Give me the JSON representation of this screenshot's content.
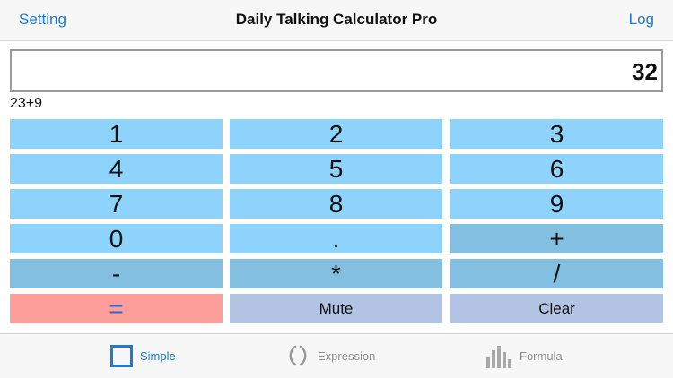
{
  "navbar": {
    "left_button": "Setting",
    "title": "Daily Talking Calculator Pro",
    "right_button": "Log"
  },
  "display": {
    "value": "32",
    "expression": "23+9"
  },
  "keypad": {
    "k1": "1",
    "k2": "2",
    "k3": "3",
    "k4": "4",
    "k5": "5",
    "k6": "6",
    "k7": "7",
    "k8": "8",
    "k9": "9",
    "k0": "0",
    "dot": ".",
    "plus": "+",
    "minus": "-",
    "multiply": "*",
    "divide": "/",
    "equals": "=",
    "mute": "Mute",
    "clear": "Clear"
  },
  "tabs": {
    "simple": {
      "label": "Simple",
      "icon": "square-icon",
      "active": true
    },
    "expression": {
      "label": "Expression",
      "icon": "parentheses-icon",
      "active": false
    },
    "formula": {
      "label": "Formula",
      "icon": "bar-chart-icon",
      "active": false
    }
  },
  "colors": {
    "accent": "#1a7ad6",
    "digit_key": "#8dd3fb",
    "operator_key": "#83bfe1",
    "equals_key": "#fd9e9a",
    "utility_key": "#b3c3e3"
  }
}
